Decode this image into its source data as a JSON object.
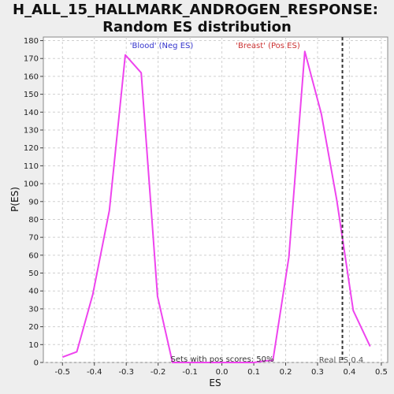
{
  "chart_data": {
    "type": "line",
    "title_line1": "H_ALL_15_HALLMARK_ANDROGEN_RESPONSE:",
    "title_line2": "Random ES distribution",
    "xlabel": "ES",
    "ylabel": "P(ES)",
    "xlim": [
      -0.56,
      0.52
    ],
    "ylim": [
      0,
      182
    ],
    "xticks": [
      -0.5,
      -0.4,
      -0.3,
      -0.2,
      -0.1,
      0.0,
      0.1,
      0.2,
      0.3,
      0.4,
      0.5
    ],
    "xtick_labels": [
      "-0.5",
      "-0.4",
      "-0.3",
      "-0.2",
      "-0.1",
      "0.0",
      "0.1",
      "0.2",
      "0.3",
      "0.4",
      "0.5"
    ],
    "yticks": [
      0,
      10,
      20,
      30,
      40,
      50,
      60,
      70,
      80,
      90,
      100,
      110,
      120,
      130,
      140,
      150,
      160,
      170,
      180
    ],
    "grid": true,
    "series": [
      {
        "color": "#ee44ee",
        "x": [
          -0.5,
          -0.455,
          -0.405,
          -0.353,
          -0.303,
          -0.253,
          -0.202,
          -0.155,
          -0.1,
          -0.05,
          0.0,
          0.05,
          0.1,
          0.14,
          0.16,
          0.21,
          0.26,
          0.312,
          0.36,
          0.412,
          0.465
        ],
        "y": [
          3,
          6,
          38,
          85,
          172,
          162,
          37,
          0,
          0,
          0,
          0,
          0,
          0,
          1,
          1,
          59,
          174,
          139,
          91,
          29,
          9
        ]
      }
    ],
    "real_es": 0.378,
    "annotations": {
      "neg_label": "'Blood' (Neg ES)",
      "pos_label": "'Breast' (Pos ES)",
      "pos_scores": "Sets with pos scores: 50%",
      "real_es_label": "Real ES 0.4"
    },
    "colors": {
      "neg": "#3333cc",
      "pos": "#cc3333",
      "grid": "#d0d0d0",
      "realline": "#333333"
    }
  }
}
